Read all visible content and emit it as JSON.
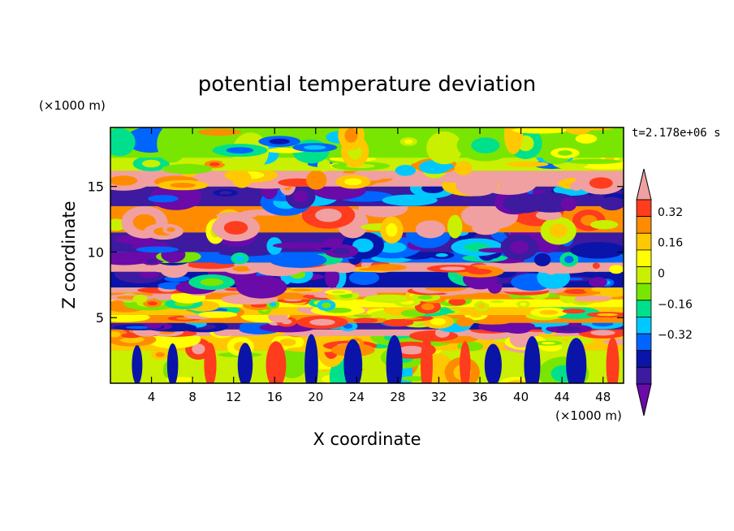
{
  "chart_data": {
    "type": "heatmap",
    "title": "potential temperature deviation",
    "time_label": "t=2.178e+06 s",
    "xlabel": "X coordinate",
    "ylabel": "Z coordinate",
    "x_unit": "(×1000 m)",
    "y_unit": "(×1000 m)",
    "xlim": [
      0,
      50
    ],
    "ylim": [
      0,
      19.5
    ],
    "x_ticks": [
      4,
      8,
      12,
      16,
      20,
      24,
      28,
      32,
      36,
      40,
      44,
      48
    ],
    "y_ticks": [
      5,
      10,
      15
    ],
    "colorbar": {
      "levels": [
        -0.48,
        -0.4,
        -0.32,
        -0.24,
        -0.16,
        -0.08,
        0,
        0.08,
        0.16,
        0.24,
        0.32,
        0.4,
        0.48
      ],
      "labels": [
        "0.32",
        "0.16",
        "0",
        "−0.16",
        "−0.32"
      ],
      "label_values": [
        0.32,
        0.16,
        0,
        -0.16,
        -0.32
      ],
      "colors": [
        "#6a0aa8",
        "#3d1aa0",
        "#0a14a8",
        "#0064ff",
        "#00c8ff",
        "#00e08c",
        "#78e600",
        "#c8f000",
        "#ffff00",
        "#ffc800",
        "#ff8c00",
        "#ff3c1e",
        "#f0a0a0"
      ]
    },
    "bands": [
      {
        "z": [
          0,
          2.5
        ],
        "value": 0.1
      },
      {
        "z": [
          2.5,
          3.6
        ],
        "value": 0.25
      },
      {
        "z": [
          3.6,
          4.1
        ],
        "value": 0.45
      },
      {
        "z": [
          4.1,
          4.6
        ],
        "value": -0.4
      },
      {
        "z": [
          4.6,
          5.2
        ],
        "value": 0.3
      },
      {
        "z": [
          5.2,
          5.8
        ],
        "value": 0.2
      },
      {
        "z": [
          5.8,
          6.4
        ],
        "value": 0.12
      },
      {
        "z": [
          6.4,
          6.9
        ],
        "value": 0.28
      },
      {
        "z": [
          6.9,
          7.3
        ],
        "value": 0.45
      },
      {
        "z": [
          7.3,
          8.5
        ],
        "value": -0.35
      },
      {
        "z": [
          8.5,
          9.2
        ],
        "value": 0.45
      },
      {
        "z": [
          9.2,
          10.0
        ],
        "value": -0.25
      },
      {
        "z": [
          10.0,
          11.5
        ],
        "value": -0.4
      },
      {
        "z": [
          11.5,
          13.5
        ],
        "value": 0.3
      },
      {
        "z": [
          13.5,
          15.0
        ],
        "value": -0.4
      },
      {
        "z": [
          15.0,
          16.2
        ],
        "value": 0.45
      },
      {
        "z": [
          16.2,
          17.2
        ],
        "value": 0.05
      },
      {
        "z": [
          17.2,
          19.5
        ],
        "value": 0.02
      }
    ]
  }
}
